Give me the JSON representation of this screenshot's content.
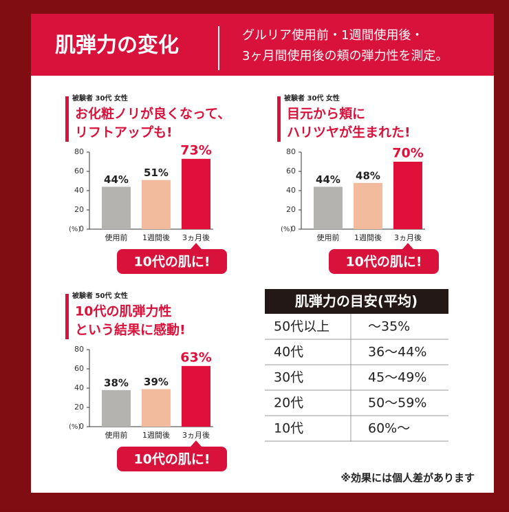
{
  "header": {
    "title": "肌弾力の変化",
    "description": [
      "グルリア使用前・1週間使用後・",
      "3ヶ月間使用後の頬の弾力性を測定。"
    ]
  },
  "chart_data": [
    {
      "type": "bar",
      "subject": "被験者 30代 女性",
      "title": [
        "お化粧ノリが良くなって、",
        "リフトアップも!"
      ],
      "categories": [
        "使用前",
        "1週間後",
        "3ヵ月後"
      ],
      "values": [
        44,
        51,
        73
      ],
      "value_labels": [
        "44%",
        "51%",
        "73%"
      ],
      "colors": [
        "#b4b3af",
        "#f3bb9d",
        "#e0103a"
      ],
      "ylim": [
        0,
        80
      ],
      "yticks": [
        0,
        20,
        40,
        60,
        80
      ],
      "y_unit": "(%)",
      "badge": "10代の肌に!"
    },
    {
      "type": "bar",
      "subject": "被験者 30代 女性",
      "title": [
        "目元から頬に",
        "ハリツヤが生まれた!"
      ],
      "categories": [
        "使用前",
        "1週間後",
        "3ヵ月後"
      ],
      "values": [
        44,
        48,
        70
      ],
      "value_labels": [
        "44%",
        "48%",
        "70%"
      ],
      "colors": [
        "#b4b3af",
        "#f3bb9d",
        "#e0103a"
      ],
      "ylim": [
        0,
        80
      ],
      "yticks": [
        0,
        20,
        40,
        60,
        80
      ],
      "y_unit": "(%)",
      "badge": "10代の肌に!"
    },
    {
      "type": "bar",
      "subject": "被験者 50代 女性",
      "title": [
        "10代の肌弾力性",
        "という結果に感動!"
      ],
      "categories": [
        "使用前",
        "1週間後",
        "3ヵ月後"
      ],
      "values": [
        38,
        39,
        63
      ],
      "value_labels": [
        "38%",
        "39%",
        "63%"
      ],
      "colors": [
        "#b4b3af",
        "#f3bb9d",
        "#e0103a"
      ],
      "ylim": [
        0,
        80
      ],
      "yticks": [
        0,
        20,
        40,
        60,
        80
      ],
      "y_unit": "(%)",
      "badge": "10代の肌に!"
    }
  ],
  "table": {
    "title": "肌弾力の目安(平均)",
    "rows": [
      [
        "50代以上",
        "～35%"
      ],
      [
        "40代",
        "36～44%"
      ],
      [
        "30代",
        "45～49%"
      ],
      [
        "20代",
        "50～59%"
      ],
      [
        "10代",
        "60%～"
      ]
    ]
  },
  "note": "※効果には個人差があります"
}
